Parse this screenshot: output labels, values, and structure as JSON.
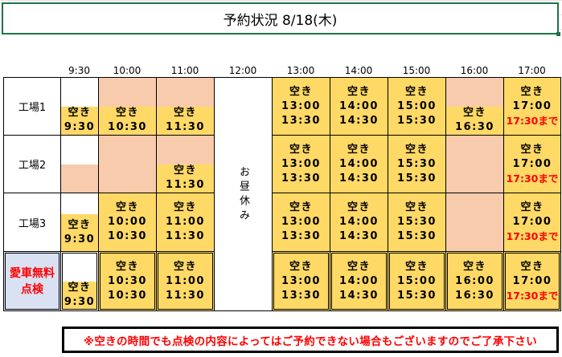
{
  "title": "予約状況  8/18(木)",
  "colors": {
    "available": "#FFD966",
    "booked": "#F8CBAD",
    "special_label_bg": "#D9E1F2",
    "red_text": "#FF0000",
    "selection": "#217346"
  },
  "headers": [
    "9:30",
    "10:00",
    "11:00",
    "12:00",
    "13:00",
    "14:00",
    "15:00",
    "16:00",
    "17:00"
  ],
  "lunch": "お昼休み",
  "rows": [
    {
      "label": "工場1",
      "special": false,
      "cells": [
        {
          "kind": "half",
          "top": "white",
          "lines": [
            "空き",
            "9:30"
          ]
        },
        {
          "kind": "half",
          "top": "booked",
          "lines": [
            "空き",
            "10:30"
          ]
        },
        {
          "kind": "half",
          "top": "booked",
          "lines": [
            "空き",
            "11:30"
          ]
        },
        {
          "kind": "full",
          "lines": [
            "空き",
            "13:00",
            "13:30"
          ]
        },
        {
          "kind": "full",
          "lines": [
            "空き",
            "14:00",
            "14:30"
          ]
        },
        {
          "kind": "full",
          "lines": [
            "空き",
            "15:00",
            "15:30"
          ]
        },
        {
          "kind": "half",
          "top": "booked",
          "lines": [
            "空き",
            "16:30"
          ]
        },
        {
          "kind": "full",
          "lines": [
            "空き",
            "17:00"
          ],
          "red": "17:30まで"
        }
      ]
    },
    {
      "label": "工場2",
      "special": false,
      "cells": [
        {
          "kind": "split",
          "top": "white",
          "bottom": "booked"
        },
        {
          "kind": "booked"
        },
        {
          "kind": "half",
          "top": "booked",
          "lines": [
            "空き",
            "11:30"
          ]
        },
        {
          "kind": "full",
          "lines": [
            "空き",
            "13:00",
            "13:30"
          ]
        },
        {
          "kind": "full",
          "lines": [
            "空き",
            "14:00",
            "14:30"
          ]
        },
        {
          "kind": "full",
          "lines": [
            "空き",
            "15:30",
            "15:30"
          ]
        },
        {
          "kind": "booked"
        },
        {
          "kind": "full",
          "lines": [
            "空き",
            "17:00"
          ],
          "red": "17:30まで"
        }
      ]
    },
    {
      "label": "工場3",
      "special": false,
      "cells": [
        {
          "kind": "half",
          "top": "white",
          "lines": [
            "空き",
            "9:30"
          ]
        },
        {
          "kind": "full",
          "lines": [
            "空き",
            "10:00",
            "10:30"
          ]
        },
        {
          "kind": "full",
          "lines": [
            "空き",
            "11:00",
            "11:30"
          ]
        },
        {
          "kind": "full",
          "lines": [
            "空き",
            "13:00",
            "13:30"
          ]
        },
        {
          "kind": "full",
          "lines": [
            "空き",
            "14:00",
            "14:30"
          ]
        },
        {
          "kind": "full",
          "lines": [
            "空き",
            "15:30",
            "15:30"
          ]
        },
        {
          "kind": "booked"
        },
        {
          "kind": "full",
          "lines": [
            "空き",
            "17:00"
          ],
          "red": "17:30まで"
        }
      ]
    },
    {
      "label": "愛車無料点検",
      "special": true,
      "cells": [
        {
          "kind": "half",
          "top": "white",
          "lines": [
            "空き",
            "9:30"
          ]
        },
        {
          "kind": "full",
          "lines": [
            "空き",
            "10:30",
            "10:30"
          ]
        },
        {
          "kind": "full",
          "lines": [
            "空き",
            "11:00",
            "11:30"
          ]
        },
        {
          "kind": "full",
          "lines": [
            "空き",
            "13:00",
            "13:30"
          ]
        },
        {
          "kind": "full",
          "lines": [
            "空き",
            "14:00",
            "14:30"
          ]
        },
        {
          "kind": "full",
          "lines": [
            "空き",
            "15:00",
            "15:30"
          ]
        },
        {
          "kind": "full",
          "lines": [
            "空き",
            "16:00",
            "16:30"
          ]
        },
        {
          "kind": "full",
          "lines": [
            "空き",
            "17:00"
          ],
          "red": "17:30まで"
        }
      ]
    }
  ],
  "notice": "※空きの時間でも点検の内容によってはご予約できない場合もございますのでご了承下さい"
}
